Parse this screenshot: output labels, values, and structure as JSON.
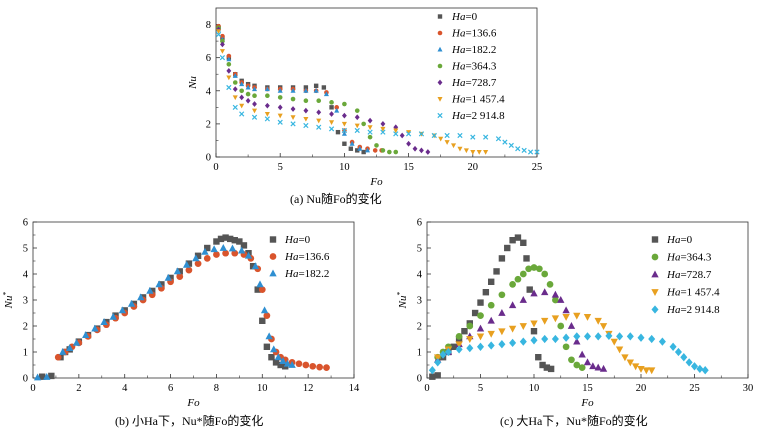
{
  "captions": {
    "a": "(a) Nu随Fo的变化",
    "b": "(b) 小Ha下，Nu*随Fo的变化",
    "c": "(c) 大Ha下，Nu*随Fo的变化"
  },
  "chart_data": [
    {
      "id": "a",
      "type": "scatter",
      "title": "(a) Nu随Fo的变化",
      "xlabel": "Fo",
      "ylabel": "Nu",
      "xlim": [
        0,
        25
      ],
      "ylim": [
        0,
        9
      ],
      "xticks": [
        0,
        5,
        10,
        15,
        20,
        25
      ],
      "yticks": [
        0,
        2,
        4,
        6,
        8
      ],
      "legend_position": "top-right",
      "series": [
        {
          "name": "Ha=0",
          "label_prefix": "Ha",
          "label_value": "=0",
          "color": "#555555",
          "marker": "square",
          "x": [
            0.2,
            0.5,
            1.0,
            1.5,
            2.0,
            2.5,
            3.0,
            4.0,
            5.0,
            6.0,
            7.0,
            7.8,
            8.4,
            9.0,
            9.5,
            10.0,
            10.5,
            11.0,
            11.5
          ],
          "y": [
            7.8,
            7.2,
            6.0,
            5.0,
            4.6,
            4.4,
            4.3,
            4.2,
            4.2,
            4.2,
            4.2,
            4.3,
            4.2,
            3.0,
            1.5,
            0.8,
            0.5,
            0.4,
            0.3
          ]
        },
        {
          "name": "Ha=136.6",
          "label_prefix": "Ha",
          "label_value": "=136.6",
          "color": "#d9542c",
          "marker": "circle",
          "x": [
            0.2,
            0.5,
            1.0,
            1.5,
            2.0,
            2.5,
            3.0,
            4.0,
            5.0,
            6.0,
            7.0,
            7.8,
            8.6,
            9.4,
            10.0,
            10.6,
            11.2,
            11.8,
            12.4,
            12.9
          ],
          "y": [
            7.9,
            7.3,
            6.1,
            5.0,
            4.5,
            4.3,
            4.2,
            4.1,
            4.1,
            4.1,
            4.0,
            4.0,
            3.9,
            3.0,
            1.6,
            0.9,
            0.6,
            0.5,
            0.4,
            0.4
          ]
        },
        {
          "name": "Ha=182.2",
          "label_prefix": "Ha",
          "label_value": "=182.2",
          "color": "#2f8fd1",
          "marker": "triangle",
          "x": [
            0.2,
            0.5,
            1.0,
            1.5,
            2.0,
            2.5,
            3.0,
            4.0,
            5.0,
            6.0,
            7.0,
            7.8,
            8.6,
            9.4,
            10.0,
            10.6,
            11.2,
            11.8
          ],
          "y": [
            7.7,
            7.1,
            5.9,
            4.9,
            4.4,
            4.2,
            4.1,
            4.1,
            4.0,
            4.0,
            4.0,
            4.0,
            3.8,
            2.8,
            1.4,
            0.8,
            0.5,
            0.4
          ]
        },
        {
          "name": "Ha=364.3",
          "label_prefix": "Ha",
          "label_value": "=364.3",
          "color": "#6aa83a",
          "marker": "circle",
          "x": [
            0.2,
            0.5,
            1.0,
            1.5,
            2.0,
            2.5,
            3.0,
            4.0,
            5.0,
            6.0,
            7.0,
            8.0,
            9.0,
            10.0,
            11.0,
            11.5,
            12.0,
            12.5,
            13.0,
            13.5,
            14.0
          ],
          "y": [
            7.8,
            7.0,
            5.6,
            4.5,
            4.0,
            3.8,
            3.7,
            3.7,
            3.6,
            3.5,
            3.4,
            3.4,
            3.3,
            3.2,
            2.8,
            2.0,
            1.2,
            0.7,
            0.4,
            0.3,
            0.3
          ]
        },
        {
          "name": "Ha=728.7",
          "label_prefix": "Ha",
          "label_value": "=728.7",
          "color": "#6a2c8c",
          "marker": "diamond",
          "x": [
            0.2,
            0.5,
            1.0,
            1.5,
            2.0,
            2.5,
            3.0,
            4.0,
            5.0,
            6.0,
            7.0,
            8.0,
            9.0,
            10.0,
            11.0,
            12.0,
            13.0,
            14.0,
            14.5,
            15.0,
            15.5,
            16.0,
            16.5
          ],
          "y": [
            7.7,
            6.8,
            5.2,
            4.1,
            3.6,
            3.4,
            3.2,
            3.1,
            3.0,
            2.9,
            2.8,
            2.7,
            2.6,
            2.5,
            2.4,
            2.2,
            2.0,
            1.8,
            1.3,
            0.8,
            0.5,
            0.4,
            0.3
          ]
        },
        {
          "name": "Ha=1 457.4",
          "label_prefix": "Ha",
          "label_value": "=1 457.4",
          "color": "#e8a020",
          "marker": "triangle-down",
          "x": [
            0.2,
            0.5,
            1.0,
            1.5,
            2.0,
            3.0,
            4.0,
            5.0,
            6.0,
            7.0,
            8.0,
            9.0,
            10.0,
            11.0,
            12.0,
            13.0,
            14.0,
            15.0,
            16.0,
            17.0,
            17.5,
            18.0,
            18.5,
            19.0,
            19.5,
            20.0,
            20.5,
            21.0
          ],
          "y": [
            7.6,
            6.4,
            4.8,
            3.6,
            3.1,
            2.8,
            2.6,
            2.5,
            2.4,
            2.3,
            2.2,
            2.1,
            2.0,
            1.9,
            1.8,
            1.7,
            1.6,
            1.5,
            1.4,
            1.3,
            1.1,
            0.9,
            0.7,
            0.5,
            0.4,
            0.3,
            0.3,
            0.3
          ]
        },
        {
          "name": "Ha=2 914.8",
          "label_prefix": "Ha",
          "label_value": "=2 914.8",
          "color": "#38b6e0",
          "marker": "x",
          "x": [
            0.2,
            0.5,
            1.0,
            1.5,
            2.0,
            3.0,
            4.0,
            5.0,
            6.0,
            7.0,
            8.0,
            9.0,
            10.0,
            11.0,
            12.0,
            13.0,
            14.0,
            15.0,
            16.0,
            17.0,
            18.0,
            19.0,
            20.0,
            21.0,
            22.0,
            22.5,
            23.0,
            23.5,
            24.0,
            24.5,
            25.0
          ],
          "y": [
            7.4,
            6.0,
            4.2,
            3.0,
            2.6,
            2.4,
            2.3,
            2.1,
            2.0,
            1.9,
            1.8,
            1.7,
            1.6,
            1.6,
            1.5,
            1.5,
            1.4,
            1.4,
            1.4,
            1.3,
            1.3,
            1.3,
            1.2,
            1.2,
            1.1,
            0.9,
            0.7,
            0.5,
            0.4,
            0.3,
            0.3
          ]
        }
      ]
    },
    {
      "id": "b",
      "type": "scatter",
      "title": "(b) 小Ha下，Nu*随Fo的变化",
      "xlabel": "Fo",
      "ylabel": "Nu*",
      "xlim": [
        0,
        14
      ],
      "ylim": [
        0,
        6
      ],
      "xticks": [
        0,
        2,
        4,
        6,
        8,
        10,
        12,
        14
      ],
      "yticks": [
        0,
        1,
        2,
        3,
        4,
        5,
        6
      ],
      "legend_position": "top-right",
      "series": [
        {
          "name": "Ha=0",
          "label_prefix": "Ha",
          "label_value": "=0",
          "color": "#555555",
          "marker": "square",
          "x": [
            0.4,
            0.8,
            1.2,
            1.4,
            1.6,
            2.0,
            2.4,
            2.8,
            3.2,
            3.6,
            4.0,
            4.4,
            4.8,
            5.2,
            5.6,
            6.0,
            6.4,
            6.8,
            7.2,
            7.6,
            8.0,
            8.2,
            8.4,
            8.6,
            8.8,
            9.0,
            9.2,
            9.4,
            9.6,
            9.8,
            10.0,
            10.2,
            10.4,
            10.6,
            10.8,
            11.0
          ],
          "y": [
            0.05,
            0.08,
            0.8,
            1.0,
            1.1,
            1.4,
            1.65,
            1.9,
            2.15,
            2.4,
            2.6,
            2.85,
            3.1,
            3.35,
            3.6,
            3.85,
            4.1,
            4.4,
            4.7,
            5.0,
            5.25,
            5.35,
            5.4,
            5.35,
            5.3,
            5.25,
            5.1,
            4.8,
            4.3,
            3.4,
            2.2,
            1.2,
            0.8,
            0.6,
            0.5,
            0.45
          ]
        },
        {
          "name": "Ha=136.6",
          "label_prefix": "Ha",
          "label_value": "=136.6",
          "color": "#d9542c",
          "marker": "circle",
          "x": [
            1.1,
            1.4,
            1.7,
            2.0,
            2.4,
            2.8,
            3.2,
            3.6,
            4.0,
            4.4,
            4.8,
            5.2,
            5.6,
            6.0,
            6.4,
            6.8,
            7.2,
            7.6,
            8.0,
            8.4,
            8.8,
            9.2,
            9.5,
            9.8,
            10.0,
            10.2,
            10.4,
            10.6,
            10.8,
            11.0,
            11.3,
            11.6,
            11.9,
            12.2,
            12.5,
            12.8
          ],
          "y": [
            0.8,
            1.0,
            1.2,
            1.35,
            1.6,
            1.85,
            2.05,
            2.3,
            2.5,
            2.75,
            3.0,
            3.2,
            3.45,
            3.7,
            3.9,
            4.15,
            4.4,
            4.6,
            4.75,
            4.8,
            4.8,
            4.75,
            4.6,
            4.2,
            3.4,
            2.4,
            1.5,
            1.0,
            0.8,
            0.7,
            0.6,
            0.55,
            0.5,
            0.45,
            0.42,
            0.4
          ]
        },
        {
          "name": "Ha=182.2",
          "label_prefix": "Ha",
          "label_value": "=182.2",
          "color": "#2f8fd1",
          "marker": "triangle",
          "x": [
            0.2,
            0.6,
            1.3,
            1.6,
            1.9,
            2.3,
            2.7,
            3.1,
            3.5,
            3.9,
            4.3,
            4.7,
            5.1,
            5.5,
            5.9,
            6.3,
            6.7,
            7.1,
            7.5,
            7.9,
            8.3,
            8.7,
            9.1,
            9.4,
            9.7,
            9.9,
            10.1,
            10.3,
            10.5,
            10.7,
            10.9,
            11.1,
            11.3
          ],
          "y": [
            0.02,
            0.04,
            1.0,
            1.15,
            1.35,
            1.65,
            1.9,
            2.15,
            2.35,
            2.6,
            2.85,
            3.1,
            3.35,
            3.6,
            3.85,
            4.1,
            4.35,
            4.6,
            4.85,
            4.95,
            5.0,
            4.98,
            4.9,
            4.7,
            4.3,
            3.6,
            2.6,
            1.6,
            1.1,
            0.8,
            0.65,
            0.55,
            0.5
          ]
        }
      ]
    },
    {
      "id": "c",
      "type": "scatter",
      "title": "(c) 大Ha下，Nu*随Fo的变化",
      "xlabel": "Fo",
      "ylabel": "Nu*",
      "xlim": [
        0,
        30
      ],
      "ylim": [
        0,
        6
      ],
      "xticks": [
        0,
        5,
        10,
        15,
        20,
        25,
        30
      ],
      "yticks": [
        0,
        1,
        2,
        3,
        4,
        5,
        6
      ],
      "legend_position": "top-right",
      "series": [
        {
          "name": "Ha=0",
          "label_prefix": "Ha",
          "label_value": "=0",
          "color": "#555555",
          "marker": "square",
          "x": [
            0.5,
            1.0,
            1.5,
            2.0,
            2.5,
            3.0,
            3.5,
            4.0,
            4.5,
            5.0,
            5.5,
            6.0,
            6.5,
            7.0,
            7.5,
            8.0,
            8.5,
            9.0,
            9.3,
            9.6,
            10.0,
            10.4,
            10.8,
            11.2,
            11.6
          ],
          "y": [
            0.05,
            0.1,
            0.8,
            1.0,
            1.2,
            1.5,
            1.8,
            2.1,
            2.5,
            2.9,
            3.3,
            3.7,
            4.1,
            4.6,
            5.0,
            5.3,
            5.4,
            5.2,
            4.6,
            3.4,
            1.8,
            0.8,
            0.5,
            0.4,
            0.35
          ]
        },
        {
          "name": "Ha=364.3",
          "label_prefix": "Ha",
          "label_value": "=364.3",
          "color": "#6aa83a",
          "marker": "circle",
          "x": [
            1.0,
            1.5,
            2.0,
            3.0,
            4.0,
            5.0,
            6.0,
            7.0,
            8.0,
            8.5,
            9.0,
            9.5,
            10.0,
            10.5,
            11.0,
            11.5,
            12.0,
            12.5,
            13.0,
            13.5,
            14.0,
            14.5
          ],
          "y": [
            0.8,
            1.0,
            1.2,
            1.6,
            2.0,
            2.4,
            2.8,
            3.2,
            3.6,
            3.8,
            4.0,
            4.2,
            4.25,
            4.2,
            4.0,
            3.6,
            3.0,
            2.0,
            1.2,
            0.7,
            0.5,
            0.4
          ]
        },
        {
          "name": "Ha=728.7",
          "label_prefix": "Ha",
          "label_value": "=728.7",
          "color": "#6a2c8c",
          "marker": "triangle",
          "x": [
            1.0,
            2.0,
            3.0,
            4.0,
            5.0,
            6.0,
            7.0,
            8.0,
            9.0,
            10.0,
            11.0,
            12.0,
            12.5,
            13.0,
            13.5,
            14.0,
            14.5,
            15.0,
            15.5,
            16.0,
            16.5
          ],
          "y": [
            0.7,
            1.0,
            1.3,
            1.6,
            1.9,
            2.2,
            2.5,
            2.8,
            3.0,
            3.25,
            3.3,
            3.2,
            3.0,
            2.6,
            2.0,
            1.4,
            0.9,
            0.6,
            0.45,
            0.4,
            0.35
          ]
        },
        {
          "name": "Ha=1 457.4",
          "label_prefix": "Ha",
          "label_value": "=1 457.4",
          "color": "#e8a020",
          "marker": "triangle-down",
          "x": [
            1.0,
            2.0,
            3.0,
            4.0,
            5.0,
            6.0,
            7.0,
            8.0,
            9.0,
            10.0,
            11.0,
            12.0,
            13.0,
            14.0,
            15.0,
            16.0,
            16.5,
            17.0,
            17.5,
            18.0,
            18.5,
            19.0,
            19.5,
            20.0,
            20.5,
            21.0
          ],
          "y": [
            0.8,
            1.1,
            1.3,
            1.5,
            1.6,
            1.7,
            1.8,
            1.9,
            2.0,
            2.1,
            2.2,
            2.3,
            2.35,
            2.4,
            2.35,
            2.2,
            2.0,
            1.7,
            1.4,
            1.1,
            0.8,
            0.6,
            0.45,
            0.35,
            0.3,
            0.3
          ]
        },
        {
          "name": "Ha=2 914.8",
          "label_prefix": "Ha",
          "label_value": "=2 914.8",
          "color": "#38b6e0",
          "marker": "diamond",
          "x": [
            0.5,
            1.0,
            1.5,
            2.0,
            3.0,
            4.0,
            5.0,
            6.0,
            7.0,
            8.0,
            9.0,
            10.0,
            11.0,
            12.0,
            13.0,
            14.0,
            15.0,
            16.0,
            17.0,
            18.0,
            19.0,
            20.0,
            21.0,
            22.0,
            23.0,
            23.5,
            24.0,
            24.5,
            25.0,
            25.5,
            26.0
          ],
          "y": [
            0.3,
            0.6,
            0.9,
            1.0,
            1.1,
            1.15,
            1.2,
            1.25,
            1.3,
            1.35,
            1.4,
            1.45,
            1.5,
            1.5,
            1.55,
            1.6,
            1.6,
            1.6,
            1.62,
            1.6,
            1.6,
            1.55,
            1.5,
            1.4,
            1.2,
            1.0,
            0.8,
            0.6,
            0.45,
            0.35,
            0.3
          ]
        }
      ]
    }
  ]
}
